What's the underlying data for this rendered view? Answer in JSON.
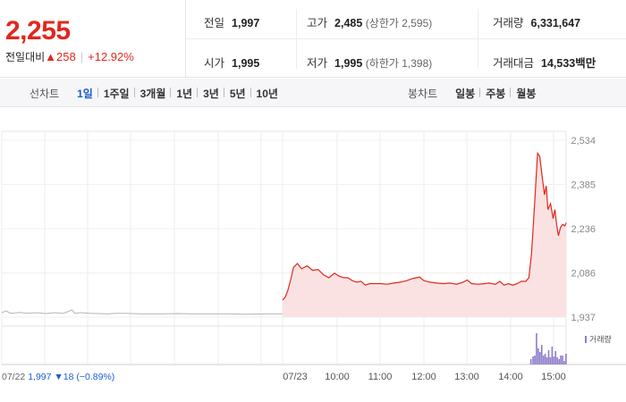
{
  "price": {
    "current": "2,255",
    "change_label": "전일대비",
    "change_arrow": "▲",
    "change_value": "258",
    "change_pct": "+12.92%"
  },
  "info": {
    "prev_close": {
      "label": "전일",
      "value": "1,997"
    },
    "open": {
      "label": "시가",
      "value": "1,995"
    },
    "high": {
      "label": "고가",
      "value": "2,485",
      "sub": "(상한가 2,595)"
    },
    "low": {
      "label": "저가",
      "value": "1,995",
      "sub": "(하한가 1,398)"
    },
    "volume": {
      "label": "거래량",
      "value": "6,331,647"
    },
    "amount": {
      "label": "거래대금",
      "value": "14,533",
      "unit": "백만"
    }
  },
  "tabs": {
    "line_title": "선차트",
    "line_items": [
      "1일",
      "1주일",
      "3개월",
      "1년",
      "3년",
      "5년",
      "10년"
    ],
    "line_active": "1일",
    "candle_title": "봉차트",
    "candle_items": [
      "일봉",
      "주봉",
      "월봉"
    ]
  },
  "colors": {
    "up": "#e0281e",
    "down": "#1a5fd6",
    "volume_bar": "#8e7bc9",
    "fill": "#fbe2e2",
    "prev_line": "#b5b5b5"
  },
  "chart_data": {
    "type": "area",
    "yticks": [
      "2,534",
      "2,385",
      "2,236",
      "2,086",
      "1,937"
    ],
    "ylim": [
      1937,
      2534
    ],
    "xticks": [
      "07/23",
      "10:00",
      "11:00",
      "12:00",
      "13:00",
      "14:00",
      "15:00"
    ],
    "legend": "거래량",
    "footer": {
      "date": "07/22",
      "price": "1,997",
      "arrow": "▼",
      "change": "18",
      "pct": "(−0.89%)"
    },
    "prev_day_series": [
      [
        0,
        1952
      ],
      [
        0.5,
        1958
      ],
      [
        1,
        1950
      ],
      [
        2,
        1953
      ],
      [
        3,
        1950
      ],
      [
        4,
        1952
      ],
      [
        5,
        1949
      ],
      [
        6,
        1952
      ],
      [
        7,
        1950
      ],
      [
        7.5,
        1955
      ],
      [
        8,
        1962
      ],
      [
        8.3,
        1950
      ],
      [
        9,
        1952
      ],
      [
        10,
        1950
      ],
      [
        11,
        1949
      ],
      [
        12,
        1948
      ],
      [
        13,
        1950
      ],
      [
        14,
        1950
      ],
      [
        16,
        1948
      ],
      [
        18,
        1948
      ],
      [
        20,
        1949
      ],
      [
        22,
        1948
      ],
      [
        24,
        1948
      ],
      [
        26,
        1948
      ],
      [
        28,
        1947
      ],
      [
        30,
        1948
      ],
      [
        32,
        1948
      ]
    ],
    "today_series": [
      [
        9.0,
        1995
      ],
      [
        9.05,
        2005
      ],
      [
        9.1,
        2030
      ],
      [
        9.15,
        2065
      ],
      [
        9.2,
        2105
      ],
      [
        9.27,
        2118
      ],
      [
        9.35,
        2100
      ],
      [
        9.45,
        2110
      ],
      [
        9.55,
        2095
      ],
      [
        9.65,
        2098
      ],
      [
        9.75,
        2080
      ],
      [
        9.85,
        2070
      ],
      [
        9.95,
        2085
      ],
      [
        10.05,
        2075
      ],
      [
        10.15,
        2070
      ],
      [
        10.25,
        2070
      ],
      [
        10.35,
        2060
      ],
      [
        10.45,
        2055
      ],
      [
        10.55,
        2058
      ],
      [
        10.65,
        2045
      ],
      [
        10.75,
        2050
      ],
      [
        10.85,
        2050
      ],
      [
        11.0,
        2050
      ],
      [
        11.15,
        2048
      ],
      [
        11.3,
        2052
      ],
      [
        11.45,
        2055
      ],
      [
        11.6,
        2060
      ],
      [
        11.75,
        2068
      ],
      [
        11.9,
        2072
      ],
      [
        12.0,
        2060
      ],
      [
        12.15,
        2055
      ],
      [
        12.3,
        2052
      ],
      [
        12.45,
        2050
      ],
      [
        12.6,
        2052
      ],
      [
        12.75,
        2048
      ],
      [
        12.9,
        2055
      ],
      [
        13.0,
        2062
      ],
      [
        13.1,
        2050
      ],
      [
        13.25,
        2048
      ],
      [
        13.4,
        2050
      ],
      [
        13.5,
        2052
      ],
      [
        13.65,
        2048
      ],
      [
        13.75,
        2058
      ],
      [
        13.85,
        2045
      ],
      [
        13.95,
        2050
      ],
      [
        14.05,
        2045
      ],
      [
        14.15,
        2050
      ],
      [
        14.25,
        2058
      ],
      [
        14.35,
        2058
      ],
      [
        14.42,
        2070
      ],
      [
        14.48,
        2150
      ],
      [
        14.52,
        2240
      ],
      [
        14.57,
        2360
      ],
      [
        14.62,
        2490
      ],
      [
        14.67,
        2480
      ],
      [
        14.72,
        2420
      ],
      [
        14.78,
        2350
      ],
      [
        14.82,
        2380
      ],
      [
        14.86,
        2300
      ],
      [
        14.92,
        2320
      ],
      [
        14.98,
        2270
      ],
      [
        15.02,
        2300
      ],
      [
        15.06,
        2250
      ],
      [
        15.1,
        2212
      ],
      [
        15.15,
        2240
      ],
      [
        15.2,
        2250
      ],
      [
        15.25,
        2245
      ],
      [
        15.28,
        2255
      ]
    ],
    "volume": [
      [
        14.45,
        6
      ],
      [
        14.5,
        9
      ],
      [
        14.54,
        10
      ],
      [
        14.58,
        35
      ],
      [
        14.62,
        18
      ],
      [
        14.66,
        14
      ],
      [
        14.7,
        22
      ],
      [
        14.74,
        10
      ],
      [
        14.78,
        12
      ],
      [
        14.82,
        8
      ],
      [
        14.86,
        16
      ],
      [
        14.9,
        8
      ],
      [
        14.94,
        20
      ],
      [
        14.98,
        9
      ],
      [
        15.02,
        15
      ],
      [
        15.06,
        8
      ],
      [
        15.1,
        6
      ],
      [
        15.14,
        10
      ],
      [
        15.18,
        10
      ],
      [
        15.22,
        4
      ],
      [
        15.26,
        12
      ]
    ]
  }
}
